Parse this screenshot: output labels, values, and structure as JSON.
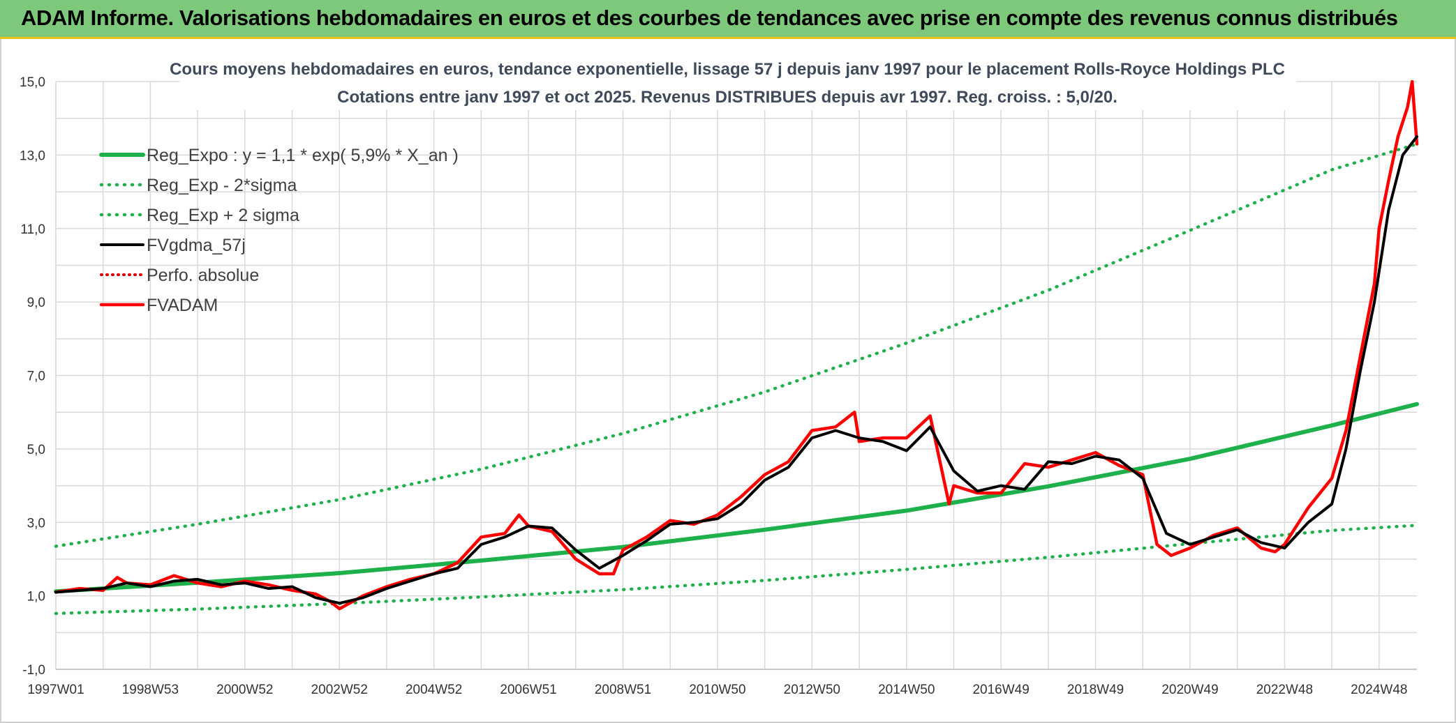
{
  "header": {
    "banner_title": "ADAM Informe. Valorisations hebdomadaires en euros et des courbes de tendances avec prise en compte des revenus connus distribués"
  },
  "colors": {
    "banner_bg": "#7dc87a",
    "banner_border": "#e8c21a",
    "reg_expo": "#1db04b",
    "reg_band": "#1db04b",
    "gdma": "#000000",
    "perfo": "#e00000",
    "fvadam": "#ff0000",
    "grid": "#d9d9d9"
  },
  "chart_data": {
    "type": "line",
    "title_line1": "Cours moyens hebdomadaires en euros, tendance exponentielle, lissage 57 j depuis janv 1997 pour le placement Rolls-Royce Holdings PLC",
    "title_line2": "Cotations entre janv 1997 et oct 2025. Revenus DISTRIBUES depuis avr 1997. Reg. croiss. : 5,0/20.",
    "xlabel": "",
    "ylabel": "",
    "x_range": [
      1997.0,
      2025.8
    ],
    "ylim": [
      -1.0,
      15.0
    ],
    "y_ticks": [
      "-1,0",
      "1,0",
      "3,0",
      "5,0",
      "7,0",
      "9,0",
      "11,0",
      "13,0",
      "15,0"
    ],
    "x_ticks": [
      {
        "label": "1997W01",
        "x": 1997.0
      },
      {
        "label": "1998W53",
        "x": 1999.0
      },
      {
        "label": "2000W52",
        "x": 2001.0
      },
      {
        "label": "2002W52",
        "x": 2003.0
      },
      {
        "label": "2004W52",
        "x": 2005.0
      },
      {
        "label": "2006W51",
        "x": 2007.0
      },
      {
        "label": "2008W51",
        "x": 2009.0
      },
      {
        "label": "2010W50",
        "x": 2011.0
      },
      {
        "label": "2012W50",
        "x": 2013.0
      },
      {
        "label": "2014W50",
        "x": 2015.0
      },
      {
        "label": "2016W49",
        "x": 2017.0
      },
      {
        "label": "2018W49",
        "x": 2019.0
      },
      {
        "label": "2020W49",
        "x": 2021.0
      },
      {
        "label": "2022W48",
        "x": 2023.0
      },
      {
        "label": "2024W48",
        "x": 2025.0
      }
    ],
    "legend": {
      "placement": "top-left"
    },
    "grid": true,
    "series": [
      {
        "name": "Reg_Expo : y = 1,1 * exp( 5,9% *  X_an )",
        "style": "solid-thick",
        "x": [
          1997.0,
          2000.0,
          2003.0,
          2006.0,
          2009.0,
          2012.0,
          2015.0,
          2018.0,
          2021.0,
          2024.0,
          2025.8
        ],
        "y": [
          1.12,
          1.36,
          1.62,
          1.96,
          2.33,
          2.8,
          3.32,
          3.98,
          4.73,
          5.64,
          6.22
        ]
      },
      {
        "name": "Reg_Exp - 2*sigma",
        "style": "dotted",
        "x": [
          1997.0,
          2000.0,
          2003.0,
          2006.0,
          2009.0,
          2012.0,
          2015.0,
          2018.0,
          2021.0,
          2024.0,
          2025.8
        ],
        "y": [
          0.52,
          0.64,
          0.79,
          0.97,
          1.17,
          1.42,
          1.72,
          2.05,
          2.42,
          2.78,
          2.92
        ]
      },
      {
        "name": "Reg_Exp + 2 sigma",
        "style": "dotted",
        "x": [
          1997.0,
          2000.0,
          2003.0,
          2006.0,
          2009.0,
          2012.0,
          2015.0,
          2018.0,
          2021.0,
          2024.0,
          2025.8
        ],
        "y": [
          2.35,
          2.95,
          3.62,
          4.45,
          5.42,
          6.55,
          7.88,
          9.32,
          10.95,
          12.6,
          13.3
        ]
      },
      {
        "name": "FVgdma_57j",
        "style": "solid",
        "x": [
          1997.0,
          1997.5,
          1998.0,
          1998.5,
          1999.0,
          1999.5,
          2000.0,
          2000.5,
          2001.0,
          2001.5,
          2002.0,
          2002.5,
          2003.0,
          2003.5,
          2004.0,
          2004.5,
          2005.0,
          2005.5,
          2006.0,
          2006.5,
          2007.0,
          2007.5,
          2008.0,
          2008.5,
          2009.0,
          2009.5,
          2010.0,
          2010.5,
          2011.0,
          2011.5,
          2012.0,
          2012.5,
          2013.0,
          2013.5,
          2014.0,
          2014.5,
          2015.0,
          2015.5,
          2016.0,
          2016.5,
          2017.0,
          2017.5,
          2018.0,
          2018.5,
          2019.0,
          2019.5,
          2020.0,
          2020.5,
          2021.0,
          2021.5,
          2022.0,
          2022.5,
          2023.0,
          2023.5,
          2024.0,
          2024.3,
          2024.6,
          2024.9,
          2025.2,
          2025.5,
          2025.8
        ],
        "y": [
          1.1,
          1.15,
          1.2,
          1.35,
          1.25,
          1.4,
          1.45,
          1.3,
          1.35,
          1.2,
          1.25,
          0.95,
          0.8,
          0.95,
          1.2,
          1.4,
          1.6,
          1.75,
          2.4,
          2.6,
          2.9,
          2.85,
          2.25,
          1.75,
          2.1,
          2.5,
          2.95,
          3.0,
          3.1,
          3.5,
          4.15,
          4.5,
          5.3,
          5.5,
          5.3,
          5.2,
          4.95,
          5.6,
          4.4,
          3.85,
          4.0,
          3.9,
          4.65,
          4.6,
          4.8,
          4.7,
          4.2,
          2.7,
          2.4,
          2.6,
          2.8,
          2.45,
          2.3,
          3.0,
          3.5,
          5.0,
          7.1,
          9.0,
          11.5,
          13.0,
          13.5
        ]
      },
      {
        "name": "Perfo. absolue",
        "style": "dotted",
        "x": [],
        "y": []
      },
      {
        "name": "FVADAM",
        "style": "solid-thick",
        "x": [
          1997.0,
          1997.5,
          1998.0,
          1998.3,
          1998.5,
          1999.0,
          1999.5,
          2000.0,
          2000.5,
          2001.0,
          2001.5,
          2002.0,
          2002.5,
          2002.8,
          2003.0,
          2003.5,
          2004.0,
          2004.5,
          2005.0,
          2005.5,
          2006.0,
          2006.5,
          2006.8,
          2007.0,
          2007.5,
          2008.0,
          2008.5,
          2008.8,
          2009.0,
          2009.5,
          2010.0,
          2010.5,
          2011.0,
          2011.5,
          2012.0,
          2012.5,
          2013.0,
          2013.5,
          2013.9,
          2014.0,
          2014.5,
          2015.0,
          2015.5,
          2015.9,
          2016.0,
          2016.5,
          2017.0,
          2017.5,
          2018.0,
          2018.5,
          2019.0,
          2019.5,
          2020.0,
          2020.3,
          2020.6,
          2021.0,
          2021.5,
          2022.0,
          2022.5,
          2022.8,
          2023.0,
          2023.5,
          2024.0,
          2024.3,
          2024.6,
          2024.9,
          2025.0,
          2025.2,
          2025.4,
          2025.6,
          2025.7,
          2025.8
        ],
        "y": [
          1.1,
          1.2,
          1.15,
          1.5,
          1.35,
          1.3,
          1.55,
          1.35,
          1.25,
          1.4,
          1.3,
          1.15,
          1.05,
          0.85,
          0.65,
          1.0,
          1.25,
          1.45,
          1.6,
          1.9,
          2.6,
          2.7,
          3.2,
          2.9,
          2.75,
          2.0,
          1.6,
          1.6,
          2.25,
          2.6,
          3.05,
          2.95,
          3.2,
          3.7,
          4.3,
          4.65,
          5.5,
          5.6,
          6.0,
          5.2,
          5.3,
          5.3,
          5.9,
          3.5,
          4.0,
          3.8,
          3.8,
          4.6,
          4.5,
          4.7,
          4.9,
          4.55,
          4.3,
          2.4,
          2.1,
          2.3,
          2.65,
          2.85,
          2.3,
          2.2,
          2.4,
          3.4,
          4.2,
          5.5,
          7.5,
          9.5,
          11.0,
          12.3,
          13.5,
          14.3,
          15.0,
          13.3
        ]
      }
    ]
  }
}
